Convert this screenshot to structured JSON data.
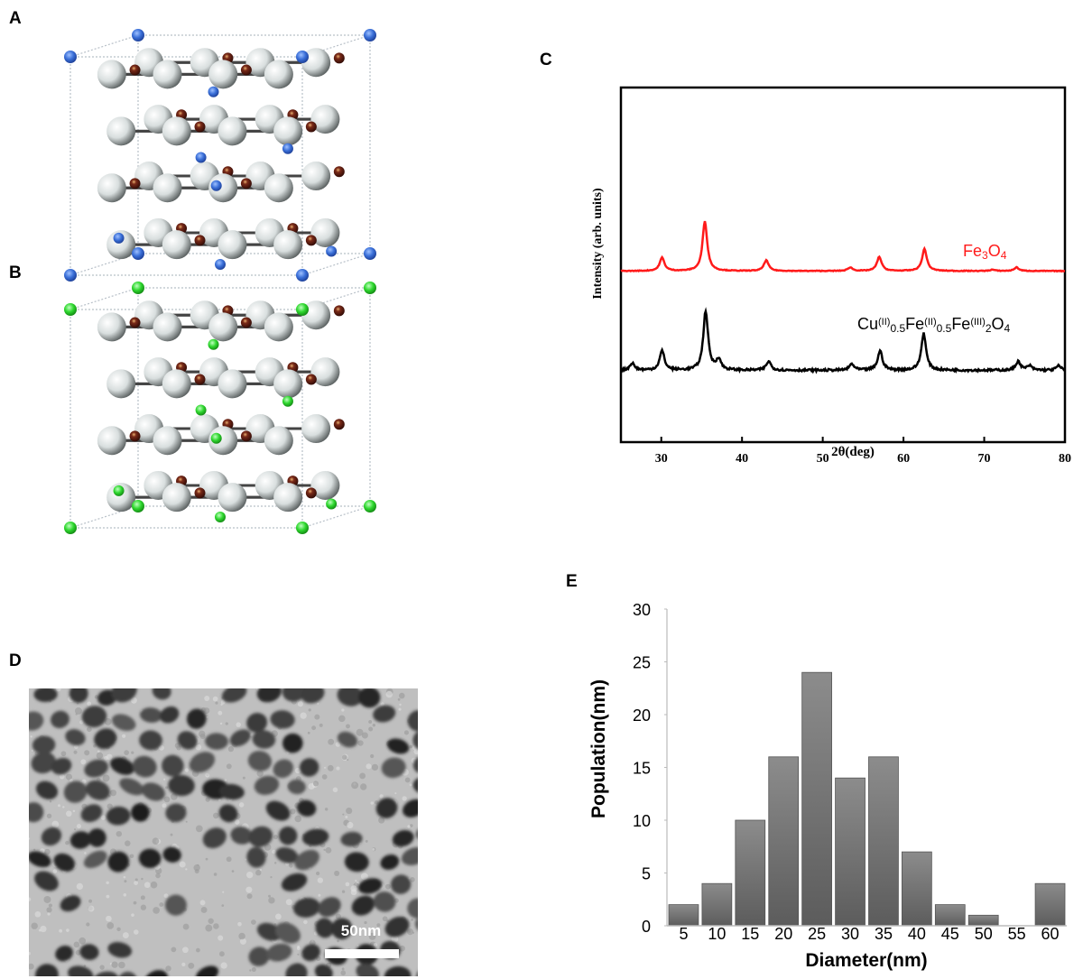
{
  "panels": {
    "a": "A",
    "b": "B",
    "c": "C",
    "d": "D",
    "e": "E"
  },
  "colors": {
    "corner_atom_a": "#3a6fd8",
    "corner_atom_b": "#2fd82f",
    "oxygen_atom": "#e8ecec",
    "metal_atom": "#5a1a10",
    "xrd_fe3o4": "#ff1a1a",
    "xrd_cufe": "#000000",
    "hist_bar": "#747474"
  },
  "tem": {
    "scale_bar_label": "50nm"
  },
  "chart_data": [
    {
      "panel": "C",
      "type": "line",
      "xlabel": "2θ(deg)",
      "ylabel": "Intensity (arb. units)",
      "xlim": [
        25,
        80
      ],
      "ylim": [
        0,
        4
      ],
      "xticks": [
        30,
        40,
        50,
        60,
        70,
        80
      ],
      "grid": false,
      "series": [
        {
          "name": "Fe3O4",
          "label_parts": [
            "Fe",
            "3",
            "O",
            "4"
          ],
          "color": "#ff1a1a",
          "baseline": 1.93,
          "peaks": [
            [
              30.1,
              0.15
            ],
            [
              35.4,
              0.56
            ],
            [
              43.0,
              0.12
            ],
            [
              53.4,
              0.04
            ],
            [
              57.0,
              0.16
            ],
            [
              62.6,
              0.25
            ],
            [
              71.0,
              0.015
            ],
            [
              74.0,
              0.04
            ]
          ]
        },
        {
          "name": "Cu(II)0.5Fe(II)0.5Fe(III)2O4",
          "label_parts": [
            "Cu",
            "(II)",
            "0.5",
            "Fe",
            "(II)",
            "0.5",
            "Fe",
            "(III)",
            "2",
            "O",
            "4"
          ],
          "color": "#000000",
          "baseline": 0.81,
          "peaks": [
            [
              26.4,
              0.08
            ],
            [
              30.1,
              0.22
            ],
            [
              35.5,
              0.67
            ],
            [
              37.1,
              0.12
            ],
            [
              43.3,
              0.1
            ],
            [
              53.6,
              0.07
            ],
            [
              57.1,
              0.22
            ],
            [
              62.5,
              0.42
            ],
            [
              74.2,
              0.1
            ],
            [
              75.6,
              0.05
            ],
            [
              79.2,
              0.05
            ]
          ]
        }
      ]
    },
    {
      "panel": "E",
      "type": "bar",
      "xlabel": "Diameter(nm)",
      "ylabel": "Population(nm)",
      "categories": [
        "5",
        "10",
        "15",
        "20",
        "25",
        "30",
        "35",
        "40",
        "45",
        "50",
        "55",
        "60"
      ],
      "values": [
        2,
        4,
        10,
        16,
        24,
        14,
        16,
        7,
        2,
        1,
        0,
        4
      ],
      "ylim": [
        0,
        30
      ],
      "yticks": [
        0,
        5,
        10,
        15,
        20,
        25,
        30
      ],
      "grid": false
    }
  ]
}
